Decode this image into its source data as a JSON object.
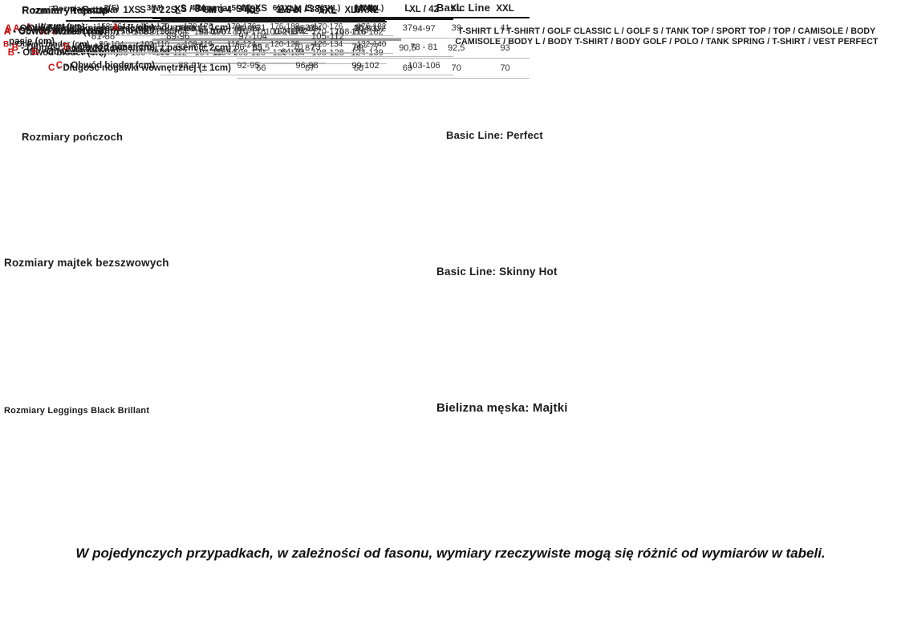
{
  "colors": {
    "accent_red": "#cc0b0e",
    "text": "#1c1c1c"
  },
  "page": {
    "footnote": "W pojedynczych przypadkach, w zależności od fasonu, wymiary rzeczywiste mogą się różnić od wymiarów w tabeli."
  },
  "sections": {
    "rajstop": {
      "title": "Rozmiary rajstop",
      "table": {
        "size_label": "Rozmiar",
        "columns": [
          "1XS",
          "2S",
          "3M",
          "4L",
          "3MAX",
          "5XL",
          "6XXL"
        ],
        "rows": [
          {
            "prefix": "A",
            "label": " - Wzrost (cm)",
            "values": [
              "150-158",
              "158-164",
              "164-170",
              "170-176",
              "162-174",
              "170-176",
              "176-182"
            ]
          },
          {
            "prefix": "B",
            "label": " - Obwód bioder (cm)",
            "values": [
              "88-100",
              "100-112",
              "104-116",
              "108-120",
              "120-134",
              "108-128",
              "124-139"
            ]
          }
        ]
      }
    },
    "ponczochy": {
      "title": "Rozmiary pończoch",
      "table": {
        "size_label": "Rozmiar",
        "columns": [
          "1-2",
          "3-4",
          "5-6"
        ],
        "rows": [
          {
            "prefix": "A",
            "label": " - Wzrost (cm)",
            "values": [
              "150-166",
              "164-178",
              "174-182"
            ]
          },
          {
            "prefix": "B",
            "label": " - Obwód uda (cm)",
            "values": [
              "48-56",
              "55-64",
              "64-76"
            ]
          }
        ]
      }
    },
    "majtki_bezszwowe": {
      "title": "Rozmiary majtek bezszwowych",
      "table": {
        "size_label": "",
        "columns": [
          "S",
          "M",
          "L",
          "XL"
        ],
        "rows": [
          {
            "prefix": "A",
            "label": " - Obwód bioder (cm)",
            "values": [
              "84-92",
              "92-100",
              "100-108",
              "108-116"
            ]
          }
        ]
      }
    },
    "leggings": {
      "title": "Rozmiary Leggings Black Brillant",
      "table": {
        "size_label": "Rozmiar",
        "columns": [
          "2(S)",
          "3(M)",
          "4(L)",
          "5(XL)",
          "6(2XL)",
          "7(3XL)",
          "8(4XL)"
        ],
        "rows": [
          {
            "prefix": "A",
            "label": " - Wzrost (cm)",
            "values": [
              "158-164",
              "164-170",
              "170-176",
              "170-176",
              "176-182",
              "170-176",
              "176-182"
            ]
          },
          {
            "prefix": "B",
            "label": " - Obwód bioder (cm)",
            "values": [
              "96-104",
              "102-110",
              "108-116",
              "116-124",
              "120-128",
              "126-134",
              "132-140"
            ]
          }
        ]
      }
    },
    "basic_line": {
      "title": "Basic Line",
      "subtitle": "T-SHIRT L / T-SHIRT / GOLF CLASSIC L / GOLF S / TANK TOP / SPORT TOP / TOP / CAMISOLE / BODY CAMISOLE / BODY L / BODY T-SHIRT / BODY GOLF / POLO / TANK SPRING / T-SHIRT / VEST PERFECT",
      "table": {
        "size_label": "",
        "columns": [
          "S",
          "M",
          "L",
          "XL"
        ],
        "rows": [
          {
            "prefix": "A",
            "label": " - Obwód klatki piersiowej (cm)",
            "values": [
              "82-88",
              "88-96",
              "96-104",
              "104-112"
            ]
          }
        ]
      }
    },
    "perfect": {
      "title": "Basic Line: Perfect",
      "table": {
        "size_label": "",
        "columns": [
          "XS / 34",
          "S / 36",
          "M / 38",
          "L / 40",
          "XL / 42"
        ],
        "rows": [
          {
            "prefix": "A",
            "label": " - Obwód klatki piersiowej (cm)",
            "values": [
              "78-81",
              "82-85",
              "86-89",
              "90-93",
              "94-97"
            ]
          },
          {
            "prefix": "B",
            "label": " - Obwód pasa (cm)",
            "values": [
              "63 - 65",
              "66 - 69",
              "70 - 73",
              "74 - 77",
              "78 - 81"
            ]
          },
          {
            "prefix": "C",
            "label": " - Obwód bioder (cm)",
            "values": [
              "88-91",
              "92-95",
              "96-98",
              "99-102",
              "103-106"
            ]
          }
        ]
      }
    },
    "skinny_hot": {
      "title": "Basic Line: Skinny Hot",
      "table": {
        "size_label": "Rozmiar",
        "columns": [
          "XS",
          "S",
          "M",
          "L",
          "XL",
          "XXL"
        ],
        "rows": [
          {
            "prefix": "A",
            "label": " - ½ obwodu pasa (± 1cm)",
            "values": [
              "31",
              "33",
              "35",
              "37",
              "39",
              "41"
            ]
          },
          {
            "prefix": "B",
            "label": " - Długość nogawki zewnętrznej z pasem (± 2cm)",
            "values": [
              "85,5",
              "87",
              "89",
              "90,5",
              "92,5",
              "93"
            ]
          },
          {
            "prefix": "C",
            "label": " - Długość nogawki wewnętrznej (± 1cm)",
            "values": [
              "66",
              "67",
              "68",
              "69",
              "70",
              "70"
            ]
          }
        ]
      }
    },
    "bielizna_meska": {
      "title": "Bielizna męska: Majtki",
      "table": {
        "size_label": "Rozmiar",
        "columns": [
          "M",
          "L",
          "XL",
          "XXL"
        ],
        "rows": [
          {
            "prefix": "A",
            "label": " - Obwód w pasie (cm)",
            "values": [
              "81-88",
              "89-96",
              "97-104",
              "105-112"
            ]
          }
        ]
      }
    }
  }
}
